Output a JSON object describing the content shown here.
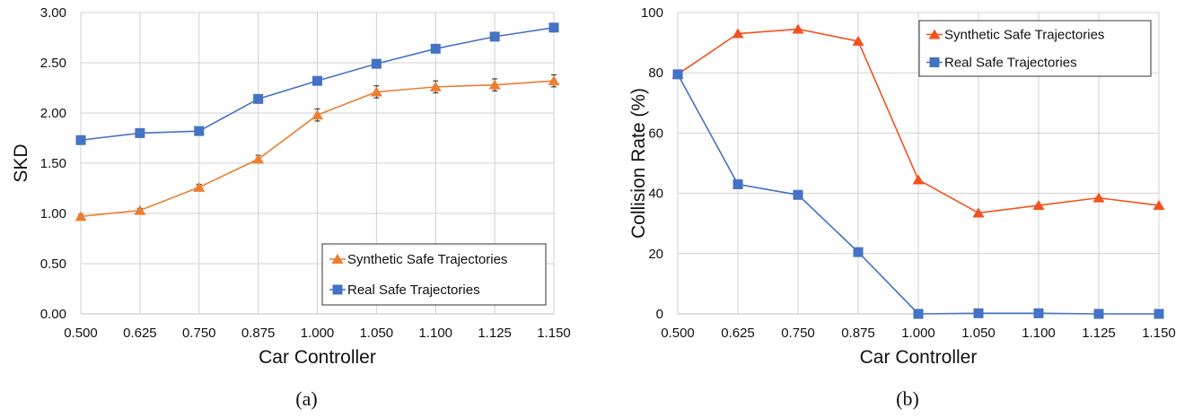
{
  "chart_data": [
    {
      "type": "line",
      "caption": "(a)",
      "xlabel": "Car Controller",
      "ylabel": "SKD",
      "categories": [
        "0.500",
        "0.625",
        "0.750",
        "0.875",
        "1.000",
        "1.050",
        "1.100",
        "1.125",
        "1.150"
      ],
      "ylim": [
        0,
        3
      ],
      "yticks": [
        "0.00",
        "0.50",
        "1.00",
        "1.50",
        "2.00",
        "2.50",
        "3.00"
      ],
      "grid": true,
      "legend_position": "bottom-right",
      "series": [
        {
          "name": "Synthetic Safe Trajectories",
          "color": "#ED7D31",
          "marker": "triangle",
          "values": [
            0.97,
            1.03,
            1.26,
            1.54,
            1.98,
            2.21,
            2.26,
            2.28,
            2.32
          ],
          "errors": [
            0.02,
            0.02,
            0.03,
            0.04,
            0.06,
            0.06,
            0.06,
            0.06,
            0.06
          ]
        },
        {
          "name": "Real Safe Trajectories",
          "color": "#4472C4",
          "marker": "square",
          "values": [
            1.73,
            1.8,
            1.82,
            2.14,
            2.32,
            2.49,
            2.64,
            2.76,
            2.85
          ],
          "errors": [
            0.04,
            0.04,
            0.04,
            0.03,
            0.03,
            0.03,
            0.03,
            0.03,
            0.03
          ]
        }
      ]
    },
    {
      "type": "line",
      "caption": "(b)",
      "xlabel": "Car Controller",
      "ylabel": "Collision Rate (%)",
      "categories": [
        "0.500",
        "0.625",
        "0.750",
        "0.875",
        "1.000",
        "1.050",
        "1.100",
        "1.125",
        "1.150"
      ],
      "ylim": [
        0,
        100
      ],
      "yticks": [
        "0",
        "20",
        "40",
        "60",
        "80",
        "100"
      ],
      "grid": true,
      "legend_position": "top-right",
      "series": [
        {
          "name": "Synthetic Safe Trajectories",
          "color": "#F4511E",
          "marker": "triangle",
          "values": [
            79.5,
            93,
            94.5,
            90.5,
            44.5,
            33.5,
            36,
            38.5,
            36
          ]
        },
        {
          "name": "Real Safe Trajectories",
          "color": "#4472C4",
          "marker": "square",
          "values": [
            79.5,
            43,
            39.5,
            20.5,
            0,
            0.2,
            0.2,
            0,
            0
          ]
        }
      ]
    }
  ]
}
